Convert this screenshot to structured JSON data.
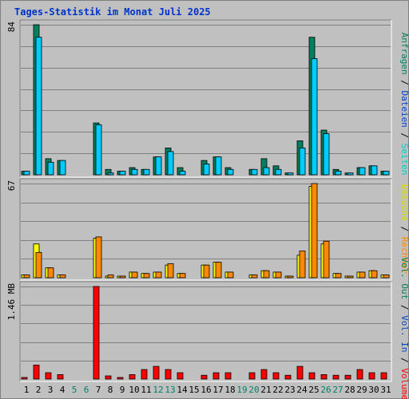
{
  "title": "Tages-Statistik im Monat Juli 2025",
  "colors": {
    "background": "#c0c0c0",
    "grid": "#808080",
    "title": "#0033cc",
    "weekday": "#000000",
    "weekend": "#008066",
    "hits": "#008060",
    "files": "#00ccff",
    "pages": "#00ffff",
    "visits": "#ffff00",
    "sites": "#ff8800",
    "kbytes": "#ff0000"
  },
  "side_legend": {
    "top": [
      {
        "text": "Anfragen",
        "color": "#008060"
      },
      {
        "text": "/",
        "color": "#000000"
      },
      {
        "text": "Dateien",
        "color": "#0044cc"
      },
      {
        "text": "/",
        "color": "#000000"
      },
      {
        "text": "Seiten",
        "color": "#00cccc"
      }
    ],
    "middle": [
      {
        "text": "Besuche",
        "color": "#dddd00"
      },
      {
        "text": "/",
        "color": "#000000"
      },
      {
        "text": "Rechner",
        "color": "#ff8800"
      }
    ],
    "bottom": [
      {
        "text": "Vol. Out",
        "color": "#008060"
      },
      {
        "text": "/",
        "color": "#000000"
      },
      {
        "text": "Vol. In",
        "color": "#0044cc"
      },
      {
        "text": "/",
        "color": "#000000"
      },
      {
        "text": "Volumen",
        "color": "#ff0000"
      }
    ]
  },
  "chart_data": [
    {
      "type": "bar",
      "panel": "top",
      "y_max_label": "84",
      "ylim": [
        0,
        84
      ],
      "x": [
        1,
        2,
        3,
        4,
        5,
        6,
        7,
        8,
        9,
        10,
        11,
        12,
        13,
        14,
        15,
        16,
        17,
        18,
        19,
        20,
        21,
        22,
        23,
        24,
        25,
        26,
        27,
        28,
        29,
        30,
        31
      ],
      "weekend_days": [
        5,
        6,
        12,
        13,
        19,
        20,
        26,
        27
      ],
      "series": [
        {
          "name": "Anfragen",
          "values": [
            2,
            84,
            9,
            8,
            0,
            0,
            29,
            3,
            2,
            4,
            3,
            10,
            15,
            4,
            0,
            8,
            10,
            4,
            0,
            3,
            9,
            5,
            1,
            19,
            77,
            25,
            3,
            1,
            4,
            5,
            2
          ]
        },
        {
          "name": "Dateien",
          "values": [
            2,
            77,
            7,
            8,
            0,
            0,
            28,
            1,
            2,
            3,
            3,
            10,
            13,
            2,
            0,
            6,
            10,
            3,
            0,
            3,
            4,
            3,
            1,
            15,
            65,
            23,
            2,
            1,
            4,
            5,
            2
          ]
        },
        {
          "name": "Seiten",
          "values": [
            0,
            0,
            0,
            0,
            0,
            0,
            0,
            0,
            0,
            0,
            0,
            0,
            0,
            0,
            0,
            0,
            0,
            0,
            0,
            0,
            0,
            0,
            0,
            0,
            0,
            0,
            0,
            0,
            0,
            0,
            0
          ]
        }
      ]
    },
    {
      "type": "bar",
      "panel": "middle",
      "y_max_label": "67",
      "ylim": [
        0,
        67
      ],
      "series": [
        {
          "name": "Besuche",
          "values": [
            2,
            24,
            7,
            2,
            0,
            0,
            28,
            1,
            1,
            4,
            3,
            4,
            9,
            3,
            0,
            9,
            11,
            4,
            0,
            2,
            5,
            4,
            1,
            16,
            65,
            24,
            3,
            1,
            4,
            5,
            2
          ]
        },
        {
          "name": "Rechner",
          "values": [
            2,
            18,
            7,
            2,
            0,
            0,
            29,
            2,
            1,
            4,
            3,
            4,
            10,
            3,
            0,
            9,
            11,
            4,
            0,
            2,
            5,
            4,
            1,
            19,
            67,
            26,
            3,
            1,
            4,
            5,
            2
          ]
        }
      ]
    },
    {
      "type": "bar",
      "panel": "bottom",
      "y_max_label": "1.46 MB",
      "ylim": [
        0,
        1.46
      ],
      "series": [
        {
          "name": "Volumen",
          "values": [
            0.02,
            0.22,
            0.1,
            0.07,
            0,
            0,
            1.46,
            0.05,
            0.02,
            0.07,
            0.15,
            0.2,
            0.15,
            0.1,
            0,
            0.06,
            0.1,
            0.1,
            0,
            0.1,
            0.15,
            0.1,
            0.06,
            0.2,
            0.1,
            0.07,
            0.06,
            0.06,
            0.15,
            0.1,
            0.1
          ]
        }
      ]
    }
  ]
}
